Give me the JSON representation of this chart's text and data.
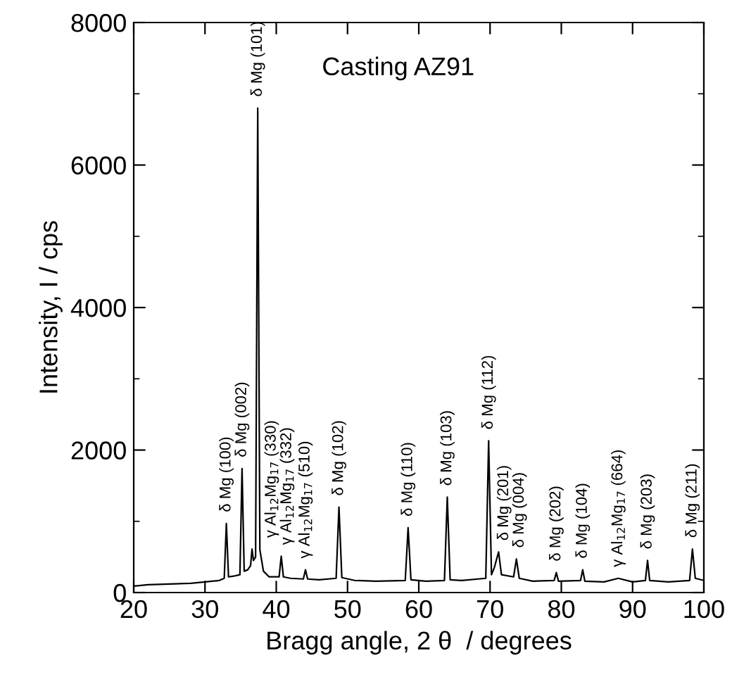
{
  "chart_data": {
    "type": "line",
    "xlabel": "Bragg angle, 2 θ  / degrees",
    "ylabel": "Intensity, I / cps",
    "xlim": [
      20,
      100
    ],
    "ylim": [
      0,
      8000
    ],
    "xticks": [
      20,
      30,
      40,
      50,
      60,
      70,
      80,
      90,
      100
    ],
    "yticks": [
      0,
      2000,
      4000,
      6000,
      8000
    ],
    "grid": false,
    "legend": false,
    "marker": "none",
    "line_style": "solid",
    "series": [
      {
        "color": "#000000",
        "x": [
          20,
          22,
          25,
          28,
          30,
          32,
          32.7,
          33.0,
          33.3,
          34.0,
          34.9,
          35.2,
          35.5,
          36.0,
          36.4,
          36.6,
          36.8,
          37.1,
          37.4,
          37.7,
          38.2,
          39,
          40.4,
          40.7,
          41.0,
          42,
          43.8,
          44.1,
          44.4,
          46,
          48.4,
          48.8,
          49.2,
          51,
          54,
          58.1,
          58.5,
          58.9,
          61,
          63.6,
          64.0,
          64.4,
          66,
          69.4,
          69.8,
          70.2,
          70.6,
          71.2,
          71.6,
          73.3,
          73.7,
          74.1,
          76,
          79.0,
          79.3,
          79.6,
          82.7,
          83.0,
          83.3,
          86,
          88.0,
          90,
          91.8,
          92.1,
          92.4,
          95,
          98.0,
          98.4,
          98.8,
          100
        ],
        "values": [
          90,
          110,
          120,
          130,
          150,
          170,
          200,
          970,
          220,
          230,
          250,
          1740,
          300,
          320,
          380,
          610,
          450,
          500,
          6800,
          600,
          300,
          220,
          220,
          510,
          220,
          200,
          190,
          320,
          190,
          180,
          200,
          1200,
          210,
          170,
          160,
          170,
          910,
          180,
          160,
          170,
          1340,
          180,
          170,
          200,
          2130,
          250,
          350,
          570,
          250,
          220,
          470,
          200,
          160,
          170,
          280,
          160,
          170,
          320,
          160,
          150,
          200,
          150,
          170,
          450,
          170,
          150,
          170,
          610,
          200,
          170
        ]
      }
    ],
    "annotations": [
      "Casting AZ91",
      {
        "text": "δ Mg (100)",
        "x": 33.0,
        "y": 970
      },
      {
        "text": "δ Mg (002)",
        "x": 35.2,
        "y": 1740
      },
      {
        "text": "γ Al$_{12}$Mg$_{17}$ (330)",
        "x": 36.6,
        "y": 610
      },
      {
        "text": "δ Mg (101)",
        "x": 37.4,
        "y": 6800
      },
      {
        "text": "γ Al$_{12}$Mg$_{17}$ (332)",
        "x": 40.7,
        "y": 510
      },
      {
        "text": "γ Al$_{12}$Mg$_{17}$ (510)",
        "x": 44.1,
        "y": 320
      },
      {
        "text": "δ Mg (102)",
        "x": 48.8,
        "y": 1200
      },
      {
        "text": "δ Mg (110)",
        "x": 58.5,
        "y": 910
      },
      {
        "text": "δ Mg (103)",
        "x": 64.0,
        "y": 1340
      },
      {
        "text": "δ Mg (112)",
        "x": 69.8,
        "y": 2130
      },
      {
        "text": "δ Mg (201)",
        "x": 71.2,
        "y": 570
      },
      {
        "text": "δ Mg (004)",
        "x": 73.7,
        "y": 470
      },
      {
        "text": "δ Mg (202)",
        "x": 79.3,
        "y": 280
      },
      {
        "text": "δ Mg (104)",
        "x": 83.0,
        "y": 320
      },
      {
        "text": "γ Al$_{12}$Mg$_{17}$ (664)",
        "x": 88.0,
        "y": 200
      },
      {
        "text": "δ Mg (203)",
        "x": 92.1,
        "y": 450
      },
      {
        "text": "δ Mg (211)",
        "x": 98.4,
        "y": 610
      }
    ]
  }
}
